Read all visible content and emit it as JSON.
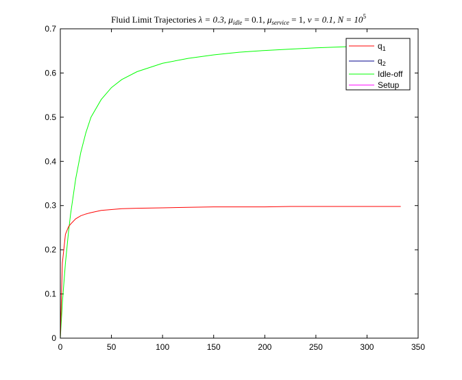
{
  "chart_data": {
    "type": "line",
    "title": {
      "prefix": "Fluid Limit Trajectories ",
      "lambda": "λ = 0.3, ",
      "mu": "μ",
      "mu_idle_sub": "idle",
      "mu_idle_val": " = 0.1, ",
      "mu_service_sub": "service",
      "mu_service_val": " = 1, ",
      "nu": "ν = 0.1, ",
      "N": "N = 10",
      "N_exp": "5"
    },
    "xlabel": "",
    "ylabel": "",
    "xlim": [
      0,
      350
    ],
    "ylim": [
      0,
      0.7
    ],
    "xticks": [
      "0",
      "50",
      "100",
      "150",
      "200",
      "250",
      "300",
      "350"
    ],
    "yticks": [
      "0",
      "0.1",
      "0.2",
      "0.3",
      "0.4",
      "0.5",
      "0.6",
      "0.7"
    ],
    "grid": false,
    "legend_position": "top-right",
    "x": [
      0,
      2,
      5,
      8,
      10,
      15,
      20,
      25,
      30,
      40,
      50,
      60,
      75,
      100,
      125,
      150,
      175,
      200,
      225,
      250,
      275,
      300,
      333
    ],
    "series": [
      {
        "name": "q",
        "name_sub": "1",
        "color": "#ff0000",
        "values": [
          0,
          0.17,
          0.235,
          0.252,
          0.258,
          0.27,
          0.277,
          0.281,
          0.284,
          0.289,
          0.291,
          0.293,
          0.294,
          0.295,
          0.296,
          0.297,
          0.297,
          0.297,
          0.298,
          0.298,
          0.298,
          0.298,
          0.298
        ]
      },
      {
        "name": "q",
        "name_sub": "2",
        "color": "#00008b",
        "values": [
          0,
          0,
          0,
          0,
          0,
          0,
          0,
          0,
          0,
          0,
          0,
          0,
          0,
          0,
          0,
          0,
          0,
          0,
          0,
          0,
          0,
          0,
          0
        ]
      },
      {
        "name": "Idle-off",
        "name_sub": "",
        "color": "#00ff00",
        "values": [
          0,
          0.08,
          0.17,
          0.24,
          0.28,
          0.36,
          0.42,
          0.465,
          0.5,
          0.54,
          0.567,
          0.585,
          0.603,
          0.622,
          0.633,
          0.641,
          0.647,
          0.651,
          0.654,
          0.657,
          0.659,
          0.661,
          0.663
        ]
      },
      {
        "name": "Setup",
        "name_sub": "",
        "color": "#ff00ff",
        "values": [
          0,
          0,
          0,
          0,
          0,
          0,
          0,
          0,
          0,
          0,
          0,
          0,
          0,
          0,
          0,
          0,
          0,
          0,
          0,
          0,
          0,
          0,
          0
        ]
      }
    ]
  }
}
